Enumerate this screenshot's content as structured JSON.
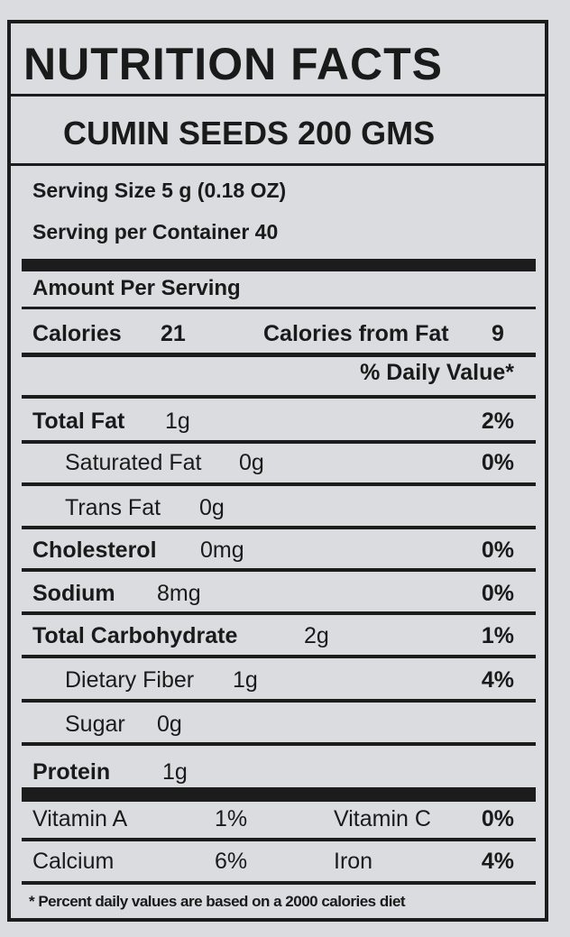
{
  "title": "NUTRITION FACTS",
  "product": "CUMIN SEEDS  200 GMS",
  "serving_size": "Serving Size 5 g (0.18 OZ)",
  "servings_per_container": "Serving per Container 40",
  "amount_per_serving": "Amount Per Serving",
  "calories": {
    "label": "Calories",
    "value": "21",
    "from_fat_label": "Calories from Fat",
    "from_fat_value": "9"
  },
  "daily_value_header": "% Daily Value*",
  "nutrients": [
    {
      "label": "Total Fat",
      "amount": "1g",
      "dv": "2%"
    },
    {
      "label": "Saturated Fat",
      "amount": "0g",
      "dv": "0%"
    },
    {
      "label": "Trans Fat",
      "amount": "0g",
      "dv": ""
    },
    {
      "label": "Cholesterol",
      "amount": "0mg",
      "dv": "0%"
    },
    {
      "label": "Sodium",
      "amount": "8mg",
      "dv": "0%"
    },
    {
      "label": "Total Carbohydrate",
      "amount": "2g",
      "dv": "1%"
    },
    {
      "label": "Dietary Fiber",
      "amount": "1g",
      "dv": "4%"
    },
    {
      "label": "Sugar",
      "amount": "0g",
      "dv": ""
    },
    {
      "label": "Protein",
      "amount": "1g",
      "dv": ""
    }
  ],
  "vitamins": [
    {
      "label": "Vitamin A",
      "dv": "1%"
    },
    {
      "label": "Vitamin C",
      "dv": "0%"
    },
    {
      "label": "Calcium",
      "dv": "6%"
    },
    {
      "label": "Iron",
      "dv": "4%"
    }
  ],
  "footnote": "* Percent daily values are based on a 2000 calories diet"
}
